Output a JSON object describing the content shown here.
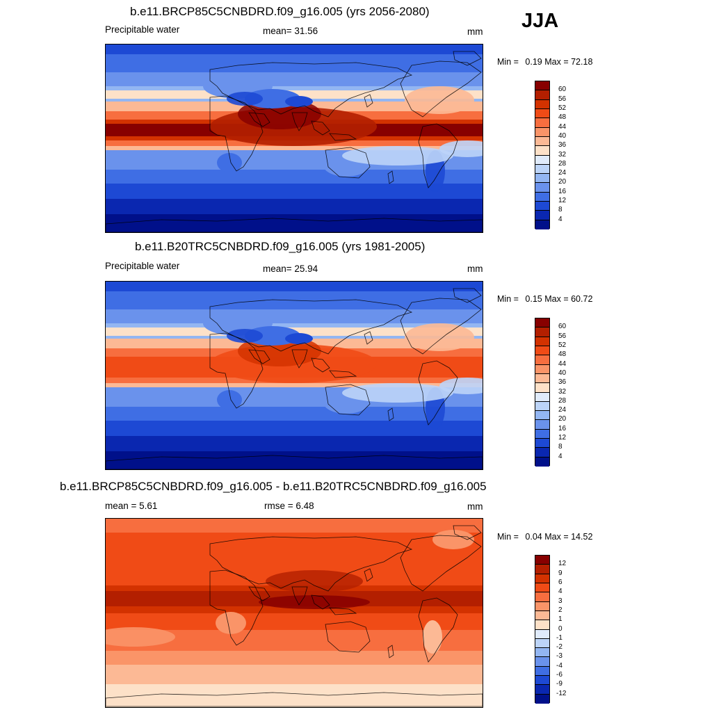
{
  "season": "JJA",
  "panels": [
    {
      "title": "b.e11.BRCP85C5CNBDRD.f09_g16.005 (yrs 2056-2080)",
      "left_label": "Precipitable water",
      "center_label": "mean=  31.56",
      "units": "mm",
      "min_label": "Min =",
      "min_value": "0.19",
      "max_label": "Max =",
      "max_value": "72.18",
      "map_kind": "projected",
      "colorbar": {
        "labels": [
          "60",
          "56",
          "52",
          "48",
          "44",
          "40",
          "36",
          "32",
          "28",
          "24",
          "20",
          "16",
          "12",
          "8",
          "4"
        ],
        "colors": [
          "#870000",
          "#b31f00",
          "#d33200",
          "#f04b16",
          "#f76e3f",
          "#fa9468",
          "#fcb995",
          "#fde1c8",
          "#e0ebfb",
          "#bcd4f8",
          "#93b6f2",
          "#6a92ec",
          "#3f6ee4",
          "#1d49d4",
          "#0a27b0",
          "#00108a"
        ]
      }
    },
    {
      "title": "b.e11.B20TRC5CNBDRD.f09_g16.005 (yrs 1981-2005)",
      "left_label": "Precipitable water",
      "center_label": "mean=  25.94",
      "units": "mm",
      "min_label": "Min =",
      "min_value": "0.15",
      "max_label": "Max =",
      "max_value": "60.72",
      "map_kind": "historical",
      "colorbar": {
        "labels": [
          "60",
          "56",
          "52",
          "48",
          "44",
          "40",
          "36",
          "32",
          "28",
          "24",
          "20",
          "16",
          "12",
          "8",
          "4"
        ],
        "colors": [
          "#870000",
          "#b31f00",
          "#d33200",
          "#f04b16",
          "#f76e3f",
          "#fa9468",
          "#fcb995",
          "#fde1c8",
          "#e0ebfb",
          "#bcd4f8",
          "#93b6f2",
          "#6a92ec",
          "#3f6ee4",
          "#1d49d4",
          "#0a27b0",
          "#00108a"
        ]
      }
    },
    {
      "title": "b.e11.BRCP85C5CNBDRD.f09_g16.005 - b.e11.B20TRC5CNBDRD.f09_g16.005",
      "left_label": "mean =   5.61",
      "center_label": "rmse =   6.48",
      "units": "mm",
      "min_label": "Min =",
      "min_value": "0.04",
      "max_label": "Max =",
      "max_value": "14.52",
      "map_kind": "difference",
      "colorbar": {
        "labels": [
          "12",
          "9",
          "6",
          "4",
          "3",
          "2",
          "1",
          "0",
          "-1",
          "-2",
          "-3",
          "-4",
          "-6",
          "-9",
          "-12"
        ],
        "colors": [
          "#870000",
          "#b31f00",
          "#d33200",
          "#f04b16",
          "#f76e3f",
          "#fa9468",
          "#fcb995",
          "#fde1c8",
          "#e0ebfb",
          "#bcd4f8",
          "#93b6f2",
          "#6a92ec",
          "#3f6ee4",
          "#1d49d4",
          "#0a27b0",
          "#00108a"
        ]
      }
    }
  ]
}
